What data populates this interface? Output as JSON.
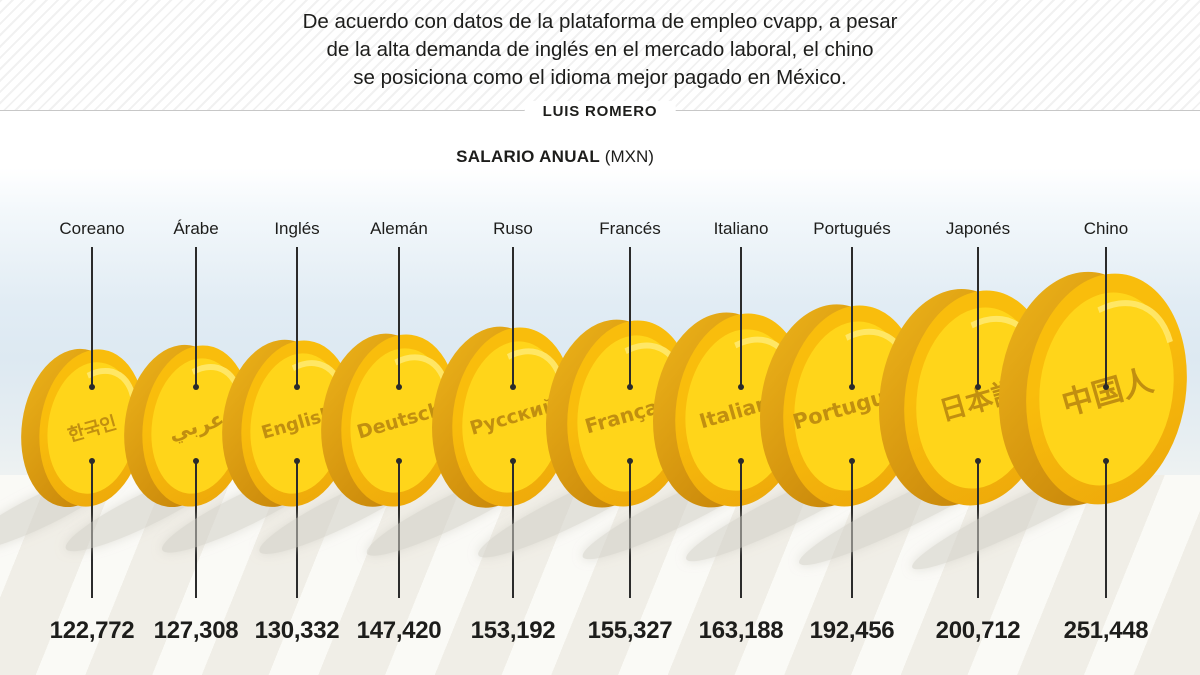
{
  "header": {
    "title_lines": [
      "De acuerdo con datos de la plataforma de empleo cvapp, a pesar",
      "de la alta demanda de inglés en el mercado laboral, el chino",
      "se posiciona como el idioma mejor pagado en México."
    ],
    "byline": "LUIS ROMERO"
  },
  "chart_data": {
    "type": "bar",
    "variant": "pictorial-coins",
    "title": "SALARIO ANUAL",
    "unit": "(MXN)",
    "ylabel": "Salario anual (MXN)",
    "categories": [
      "Coreano",
      "Árabe",
      "Inglés",
      "Alemán",
      "Ruso",
      "Francés",
      "Italiano",
      "Portugués",
      "Japonés",
      "Chino"
    ],
    "values": [
      122772,
      127308,
      130332,
      147420,
      153192,
      155327,
      163188,
      192456,
      200712,
      251448
    ],
    "items": [
      {
        "label": "Coreano",
        "native": "한국인",
        "value": "122,772"
      },
      {
        "label": "Árabe",
        "native": "عربي",
        "value": "127,308"
      },
      {
        "label": "Inglés",
        "native": "English",
        "value": "130,332"
      },
      {
        "label": "Alemán",
        "native": "Deutsch",
        "value": "147,420"
      },
      {
        "label": "Ruso",
        "native": "Русский",
        "value": "153,192"
      },
      {
        "label": "Francés",
        "native": "Français",
        "value": "155,327"
      },
      {
        "label": "Italiano",
        "native": "Italiano",
        "value": "163,188"
      },
      {
        "label": "Portugués",
        "native": "Português",
        "value": "192,456"
      },
      {
        "label": "Japonés",
        "native": "日本語",
        "value": "200,712"
      },
      {
        "label": "Chino",
        "native": "中国人",
        "value": "251,448"
      }
    ]
  },
  "colors": {
    "coin_face": "#ffd51a",
    "coin_ring": "#f7b60a",
    "coin_edge": "#cf8e0d",
    "coin_text": "#c18f10",
    "sky": "#dde9f2",
    "ground": "#f5f3ec",
    "ink": "#1d1d1b"
  }
}
